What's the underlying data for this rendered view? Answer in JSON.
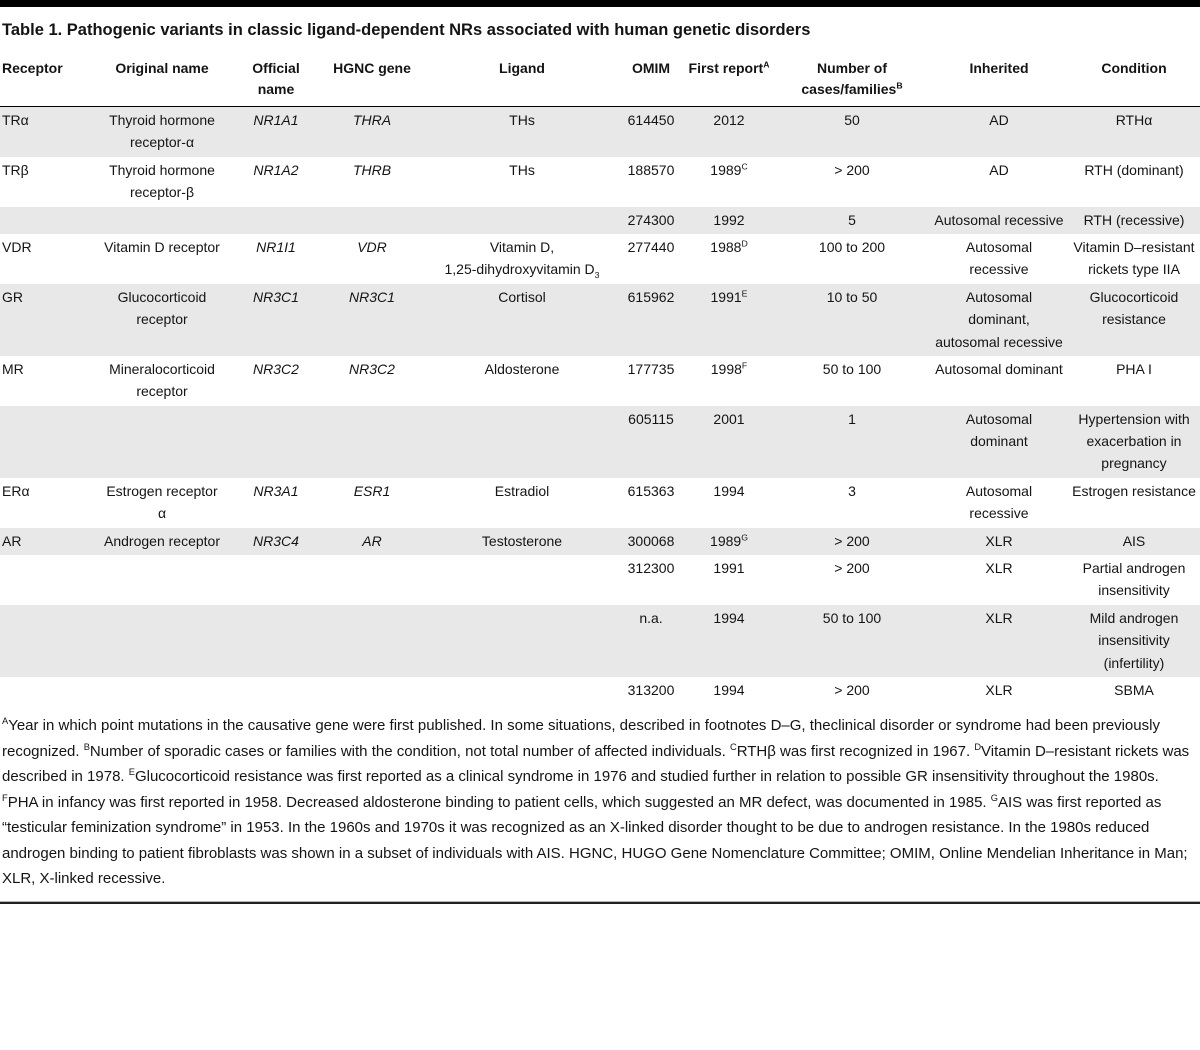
{
  "title": "Table 1. Pathogenic variants in classic ligand-dependent NRs associated with human genetic disorders",
  "colors": {
    "row_shade": "#e8e8e8",
    "rule": "#000000",
    "top_bar": "#000000"
  },
  "table": {
    "columns": [
      {
        "label": "Receptor",
        "align": "left",
        "width": "7.5%",
        "italic": false
      },
      {
        "label": "Original name",
        "align": "center",
        "width": "12%",
        "italic": false
      },
      {
        "label": "Official name",
        "align": "center",
        "width": "7%",
        "italic": true
      },
      {
        "label": "HGNC gene",
        "align": "center",
        "width": "9%",
        "italic": true
      },
      {
        "label": "Ligand",
        "align": "center",
        "width": "16%",
        "italic": false
      },
      {
        "label": "OMIM",
        "align": "center",
        "width": "5.5%",
        "italic": false
      },
      {
        "label": "First report^A",
        "align": "center",
        "width": "7.5%",
        "italic": false
      },
      {
        "label": "Number of\ncases/families^B",
        "align": "center",
        "width": "13%",
        "italic": false
      },
      {
        "label": "Inherited",
        "align": "center",
        "width": "11.5%",
        "italic": false
      },
      {
        "label": "Condition",
        "align": "center",
        "width": "11%",
        "italic": false
      }
    ],
    "rows": [
      {
        "shaded": true,
        "cells": [
          "TRα",
          "Thyroid hormone\nreceptor-α",
          "NR1A1",
          "THRA",
          "THs",
          "614450",
          "2012",
          "50",
          "AD",
          "RTHα"
        ]
      },
      {
        "shaded": false,
        "cells": [
          "TRβ",
          "Thyroid hormone\nreceptor-β",
          "NR1A2",
          "THRB",
          "THs",
          "188570",
          "1989^C",
          "> 200",
          "AD",
          "RTH (dominant)"
        ]
      },
      {
        "shaded": true,
        "cells": [
          "",
          "",
          "",
          "",
          "",
          "274300",
          "1992",
          "5",
          "Autosomal recessive",
          "RTH (recessive)"
        ]
      },
      {
        "shaded": false,
        "cells": [
          "VDR",
          "Vitamin D receptor",
          "NR1I1",
          "VDR",
          "Vitamin D,\n1,25-dihydroxyvitamin D~3",
          "277440",
          "1988^D",
          "100 to 200",
          "Autosomal\nrecessive",
          "Vitamin D–resistant\nrickets type IIA"
        ]
      },
      {
        "shaded": true,
        "cells": [
          "GR",
          "Glucocorticoid\nreceptor",
          "NR3C1",
          "NR3C1",
          "Cortisol",
          "615962",
          "1991^E",
          "10 to 50",
          "Autosomal\ndominant,\nautosomal recessive",
          "Glucocorticoid\nresistance"
        ]
      },
      {
        "shaded": false,
        "cells": [
          "MR",
          "Mineralocorticoid\nreceptor",
          "NR3C2",
          "NR3C2",
          "Aldosterone",
          "177735",
          "1998^F",
          "50 to 100",
          "Autosomal dominant",
          "PHA I"
        ]
      },
      {
        "shaded": true,
        "cells": [
          "",
          "",
          "",
          "",
          "",
          "605115",
          "2001",
          "1",
          "Autosomal\ndominant",
          "Hypertension with\nexacerbation in\npregnancy"
        ]
      },
      {
        "shaded": false,
        "cells": [
          "ERα",
          "Estrogen receptor\nα",
          "NR3A1",
          "ESR1",
          "Estradiol",
          "615363",
          "1994",
          "3",
          "Autosomal\nrecessive",
          "Estrogen resistance"
        ]
      },
      {
        "shaded": true,
        "cells": [
          "AR",
          "Androgen receptor",
          "NR3C4",
          "AR",
          "Testosterone",
          "300068",
          "1989^G",
          "> 200",
          "XLR",
          "AIS"
        ]
      },
      {
        "shaded": false,
        "cells": [
          "",
          "",
          "",
          "",
          "",
          "312300",
          "1991",
          "> 200",
          "XLR",
          "Partial androgen\ninsensitivity"
        ]
      },
      {
        "shaded": true,
        "cells": [
          "",
          "",
          "",
          "",
          "",
          "n.a.",
          "1994",
          "50 to 100",
          "XLR",
          "Mild androgen\ninsensitivity\n(infertility)"
        ]
      },
      {
        "shaded": false,
        "cells": [
          "",
          "",
          "",
          "",
          "",
          "313200",
          "1994",
          "> 200",
          "XLR",
          "SBMA"
        ]
      }
    ]
  },
  "footnote": "^AYear in which point mutations in the causative gene were first published. In some situations, described in footnotes D–G, theclinical disorder or syndrome had been previously recognized. ^BNumber of sporadic cases or families with the condition, not total number of affected individuals. ^CRTHβ was first recognized in 1967. ^DVitamin D–resistant rickets was described in 1978. ^EGlucocorticoid resistance was first reported as a clinical syndrome in 1976 and studied further in relation to possible GR insensitivity throughout the 1980s. ^FPHA in infancy was first reported in 1958. Decreased aldosterone binding to patient cells, which suggested an MR defect, was documented in 1985. ^GAIS was first reported as “testicular feminization syndrome” in 1953. In the 1960s and 1970s it was recognized as an X-linked disorder thought to be due to androgen resistance. In the 1980s reduced androgen binding to patient fibroblasts was shown in a subset of individuals with AIS. HGNC, HUGO Gene Nomenclature Committee; OMIM, Online Mendelian Inheritance in Man; XLR, X-linked recessive."
}
